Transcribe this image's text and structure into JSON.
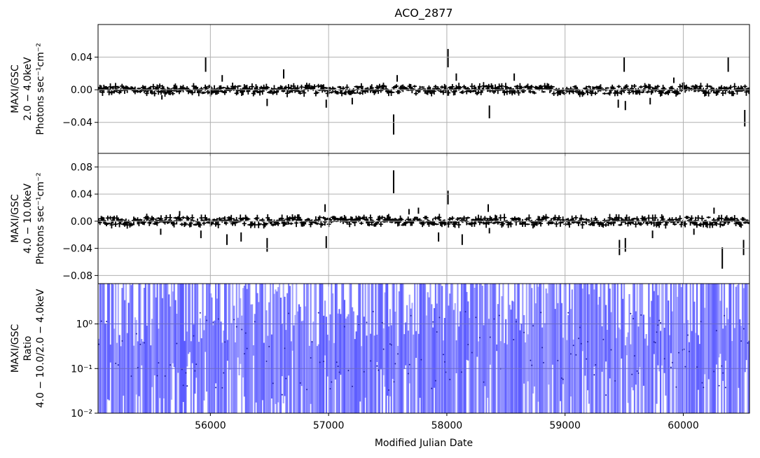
{
  "chart_data": {
    "type": "scatter",
    "title": "ACO_2877",
    "xlabel": "Modified Julian Date",
    "xlim": [
      55050,
      60560
    ],
    "x_ticks": [
      56000,
      57000,
      58000,
      59000,
      60000
    ],
    "x_tick_labels": [
      "56000",
      "57000",
      "58000",
      "59000",
      "60000"
    ],
    "grid": true,
    "panels": [
      {
        "ylabel_lines": [
          "MAXI/GSC",
          "2.0 − 4.0keV",
          "Photons sec⁻¹cm⁻²"
        ],
        "ylim": [
          -0.078,
          0.08
        ],
        "y_ticks": [
          -0.04,
          0.0,
          0.04
        ],
        "y_tick_labels": [
          "−0.04",
          "0.00",
          "0.04"
        ],
        "color": "#000000",
        "spikes": [
          {
            "x": 55590,
            "y": -0.012
          },
          {
            "x": 55960,
            "y": 0.04
          },
          {
            "x": 56100,
            "y": 0.018
          },
          {
            "x": 56480,
            "y": -0.02
          },
          {
            "x": 56620,
            "y": 0.025
          },
          {
            "x": 56980,
            "y": -0.022
          },
          {
            "x": 57200,
            "y": -0.018
          },
          {
            "x": 57550,
            "y": -0.055
          },
          {
            "x": 57580,
            "y": 0.018
          },
          {
            "x": 58010,
            "y": 0.05
          },
          {
            "x": 58080,
            "y": 0.02
          },
          {
            "x": 58360,
            "y": -0.035
          },
          {
            "x": 58570,
            "y": 0.02
          },
          {
            "x": 59450,
            "y": -0.022
          },
          {
            "x": 59500,
            "y": 0.04
          },
          {
            "x": 59510,
            "y": -0.025
          },
          {
            "x": 59720,
            "y": -0.018
          },
          {
            "x": 59920,
            "y": 0.015
          },
          {
            "x": 60380,
            "y": 0.04
          },
          {
            "x": 60520,
            "y": -0.045
          }
        ]
      },
      {
        "ylabel_lines": [
          "MAXI/GSC",
          "4.0 − 10.0keV",
          "Photons sec⁻¹cm⁻²"
        ],
        "ylim": [
          -0.092,
          0.1
        ],
        "y_ticks": [
          -0.08,
          -0.04,
          0.0,
          0.04,
          0.08
        ],
        "y_tick_labels": [
          "−0.08",
          "−0.04",
          "0.00",
          "0.04",
          "0.08"
        ],
        "color": "#000000",
        "spikes": [
          {
            "x": 55580,
            "y": -0.02
          },
          {
            "x": 55740,
            "y": 0.015
          },
          {
            "x": 55920,
            "y": -0.025
          },
          {
            "x": 56140,
            "y": -0.035
          },
          {
            "x": 56260,
            "y": -0.03
          },
          {
            "x": 56480,
            "y": -0.045
          },
          {
            "x": 56980,
            "y": -0.04
          },
          {
            "x": 56970,
            "y": 0.025
          },
          {
            "x": 57550,
            "y": 0.075
          },
          {
            "x": 57680,
            "y": 0.018
          },
          {
            "x": 57760,
            "y": 0.02
          },
          {
            "x": 57930,
            "y": -0.03
          },
          {
            "x": 58010,
            "y": 0.045
          },
          {
            "x": 58130,
            "y": -0.035
          },
          {
            "x": 58350,
            "y": 0.025
          },
          {
            "x": 58360,
            "y": -0.018
          },
          {
            "x": 59460,
            "y": -0.05
          },
          {
            "x": 59510,
            "y": -0.045
          },
          {
            "x": 59740,
            "y": -0.025
          },
          {
            "x": 60090,
            "y": -0.02
          },
          {
            "x": 60260,
            "y": 0.02
          },
          {
            "x": 60330,
            "y": -0.07
          },
          {
            "x": 60510,
            "y": -0.05
          }
        ]
      },
      {
        "ylabel_lines": [
          "MAXI/GSC",
          "Ratio",
          "4.0 − 10.0/2.0 − 4.0keV"
        ],
        "yscale": "log",
        "ylim": [
          0.01,
          8.0
        ],
        "y_ticks": [
          0.01,
          0.1,
          1.0
        ],
        "y_tick_labels": [
          "10⁻²",
          "10⁻¹",
          "10⁰"
        ],
        "color": "#4040ff"
      }
    ]
  }
}
